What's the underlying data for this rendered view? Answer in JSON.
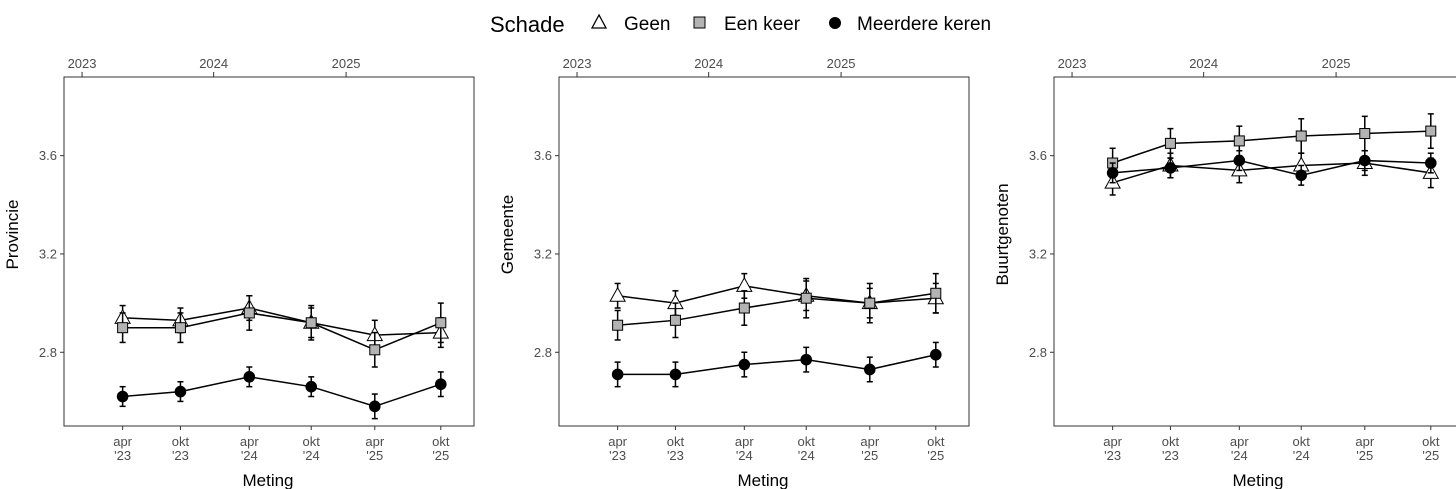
{
  "legend": {
    "title": "Schade",
    "items": [
      {
        "label": "Geen",
        "shape": "triangle-open"
      },
      {
        "label": "Een keer",
        "shape": "square-gray"
      },
      {
        "label": "Meerdere keren",
        "shape": "circle-black"
      }
    ]
  },
  "chart_data": [
    {
      "type": "line",
      "ylabel": "Provincie",
      "xlabel": "Meting",
      "ylim": [
        2.5,
        3.92
      ],
      "yticks": [
        2.8,
        3.2,
        3.6
      ],
      "categories": [
        "apr\n'23",
        "okt\n'23",
        "apr\n'24",
        "okt\n'24",
        "apr\n'25",
        "okt\n'25"
      ],
      "top_axis_labels": [
        "2023",
        "2024",
        "2025"
      ],
      "series": [
        {
          "name": "Geen",
          "values": [
            2.94,
            2.93,
            2.98,
            2.92,
            2.87,
            2.88
          ],
          "err": [
            0.05,
            0.05,
            0.05,
            0.06,
            0.06,
            0.06
          ]
        },
        {
          "name": "Een keer",
          "values": [
            2.9,
            2.9,
            2.96,
            2.92,
            2.81,
            2.92
          ],
          "err": [
            0.06,
            0.06,
            0.07,
            0.07,
            0.07,
            0.08
          ]
        },
        {
          "name": "Meerdere keren",
          "values": [
            2.62,
            2.64,
            2.7,
            2.66,
            2.58,
            2.67
          ],
          "err": [
            0.04,
            0.04,
            0.04,
            0.04,
            0.05,
            0.05
          ]
        }
      ]
    },
    {
      "type": "line",
      "ylabel": "Gemeente",
      "xlabel": "Meting",
      "ylim": [
        2.5,
        3.92
      ],
      "yticks": [
        2.8,
        3.2,
        3.6
      ],
      "categories": [
        "apr\n'23",
        "okt\n'23",
        "apr\n'24",
        "okt\n'24",
        "apr\n'25",
        "okt\n'25"
      ],
      "top_axis_labels": [
        "2023",
        "2024",
        "2025"
      ],
      "series": [
        {
          "name": "Geen",
          "values": [
            3.03,
            3.0,
            3.07,
            3.03,
            3.0,
            3.02
          ],
          "err": [
            0.05,
            0.05,
            0.05,
            0.06,
            0.06,
            0.06
          ]
        },
        {
          "name": "Een keer",
          "values": [
            2.91,
            2.93,
            2.98,
            3.02,
            3.0,
            3.04
          ],
          "err": [
            0.06,
            0.07,
            0.07,
            0.08,
            0.08,
            0.08
          ]
        },
        {
          "name": "Meerdere keren",
          "values": [
            2.71,
            2.71,
            2.75,
            2.77,
            2.73,
            2.79
          ],
          "err": [
            0.05,
            0.05,
            0.05,
            0.05,
            0.05,
            0.05
          ]
        }
      ]
    },
    {
      "type": "line",
      "ylabel": "Buurtgenoten",
      "xlabel": "Meting",
      "ylim": [
        2.5,
        3.92
      ],
      "yticks": [
        2.8,
        3.2,
        3.6
      ],
      "categories": [
        "apr\n'23",
        "okt\n'23",
        "apr\n'24",
        "okt\n'24",
        "apr\n'25",
        "okt\n'25"
      ],
      "top_axis_labels": [
        "2023",
        "2024",
        "2025"
      ],
      "series": [
        {
          "name": "Geen",
          "values": [
            3.49,
            3.56,
            3.54,
            3.56,
            3.57,
            3.53
          ],
          "err": [
            0.05,
            0.05,
            0.05,
            0.05,
            0.05,
            0.06
          ]
        },
        {
          "name": "Een keer",
          "values": [
            3.57,
            3.65,
            3.66,
            3.68,
            3.69,
            3.7
          ],
          "err": [
            0.06,
            0.06,
            0.06,
            0.07,
            0.07,
            0.07
          ]
        },
        {
          "name": "Meerdere keren",
          "values": [
            3.53,
            3.55,
            3.58,
            3.52,
            3.58,
            3.57
          ],
          "err": [
            0.04,
            0.04,
            0.04,
            0.04,
            0.04,
            0.04
          ]
        }
      ]
    }
  ]
}
